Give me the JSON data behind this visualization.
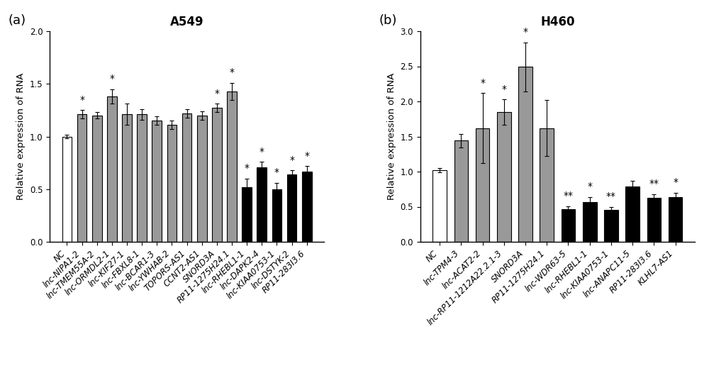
{
  "panel_a": {
    "title": "A549",
    "ylabel": "Relative expression of RNA",
    "ylim": [
      0,
      2.0
    ],
    "yticks": [
      0.0,
      0.5,
      1.0,
      1.5,
      2.0
    ],
    "categories": [
      "NC",
      "lnc-NIPA1-2",
      "lnc-TMEM55A-2",
      "lnc-ORMDL2-1",
      "lnc-KIF27-1",
      "lnc-FBXL8-1",
      "lnc-BCAR1-3",
      "lnc-YWHAB-2",
      "TOPORS-AS1",
      "CCNT2-AS1",
      "SNORD3A",
      "RP11-1275H24.1",
      "lnc-RHEBL1-1",
      "lnc-DAPK2-4",
      "lnc-KIAA0753-1",
      "lnc-DSTYK-2",
      "RP11-283I3.6"
    ],
    "values": [
      1.0,
      1.21,
      1.2,
      1.38,
      1.21,
      1.21,
      1.15,
      1.11,
      1.22,
      1.2,
      1.27,
      1.43,
      0.52,
      0.71,
      0.5,
      0.64,
      0.67
    ],
    "errors": [
      0.02,
      0.04,
      0.03,
      0.07,
      0.1,
      0.05,
      0.04,
      0.04,
      0.04,
      0.04,
      0.04,
      0.08,
      0.08,
      0.05,
      0.06,
      0.04,
      0.05
    ],
    "colors": [
      "white",
      "#999999",
      "#999999",
      "#999999",
      "#999999",
      "#999999",
      "#999999",
      "#999999",
      "#999999",
      "#999999",
      "#999999",
      "#999999",
      "black",
      "black",
      "black",
      "black",
      "black"
    ],
    "significance": [
      "",
      "*",
      "",
      "*",
      "",
      "",
      "",
      "",
      "",
      "",
      "*",
      "*",
      "*",
      "*",
      "*",
      "*",
      "*"
    ],
    "panel_label": "(a)"
  },
  "panel_b": {
    "title": "H460",
    "ylabel": "Relative expression of RNA",
    "ylim": [
      0,
      3.0
    ],
    "yticks": [
      0.0,
      0.5,
      1.0,
      1.5,
      2.0,
      2.5,
      3.0
    ],
    "categories": [
      "NC",
      "lnc-TPM4-3",
      "lnc-ACAT2-2",
      "lnc-RP11-1212A22.2.1-3",
      "SNORD3A",
      "RP11-1275H24.1",
      "lnc-WDR63-5",
      "lnc-RHEBL1-1",
      "lnc-KIAA0753-1",
      "lnc-ANAPC11-5",
      "RP11-283I3.6",
      "KLHL7-AS1"
    ],
    "values": [
      1.02,
      1.44,
      1.62,
      1.85,
      2.49,
      1.62,
      0.46,
      0.57,
      0.45,
      0.79,
      0.63,
      0.64
    ],
    "errors": [
      0.03,
      0.1,
      0.5,
      0.18,
      0.35,
      0.4,
      0.05,
      0.07,
      0.05,
      0.08,
      0.05,
      0.06
    ],
    "colors": [
      "white",
      "#999999",
      "#999999",
      "#999999",
      "#999999",
      "#999999",
      "black",
      "black",
      "black",
      "black",
      "black",
      "black"
    ],
    "significance": [
      "",
      "",
      "*",
      "*",
      "*",
      "",
      "**",
      "*",
      "**",
      "",
      "**",
      "*"
    ],
    "panel_label": "(b)"
  },
  "bar_edgecolor": "black",
  "bar_linewidth": 0.8,
  "error_capsize": 2.5,
  "error_linewidth": 0.8,
  "tick_fontsize": 8.5,
  "label_fontsize": 9.5,
  "title_fontsize": 12,
  "panel_label_fontsize": 13,
  "sig_fontsize": 10,
  "background_color": "white"
}
